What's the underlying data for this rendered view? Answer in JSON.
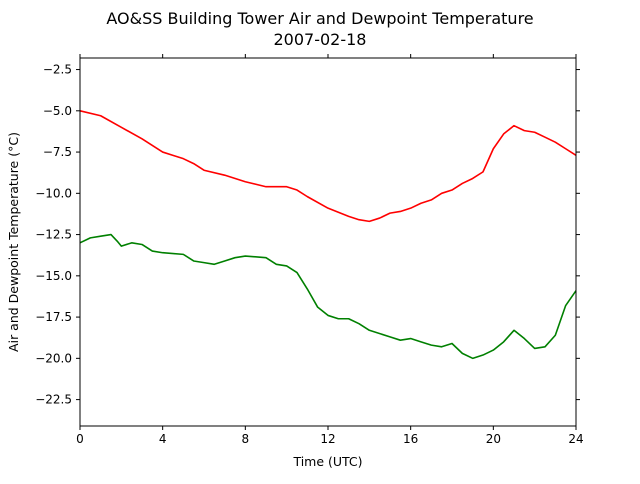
{
  "chart_data": {
    "type": "line",
    "title_line1": "AO&SS Building Tower Air and Dewpoint Temperature",
    "title_line2": "2007-02-18",
    "xlabel": "Time (UTC)",
    "ylabel": "Air and Dewpoint Temperature (°C)",
    "xlim": [
      0,
      24
    ],
    "ylim": [
      -24.1,
      -1.8
    ],
    "x_ticks": [
      0,
      4,
      8,
      12,
      16,
      20,
      24
    ],
    "x_tick_labels": [
      "0",
      "4",
      "8",
      "12",
      "16",
      "20",
      "24"
    ],
    "y_ticks": [
      -22.5,
      -20.0,
      -17.5,
      -15.0,
      -12.5,
      -10.0,
      -7.5,
      -5.0,
      -2.5
    ],
    "y_tick_labels": [
      "−22.5",
      "−20.0",
      "−17.5",
      "−15.0",
      "−12.5",
      "−10.0",
      "−7.5",
      "−5.0",
      "−2.5"
    ],
    "grid": false,
    "series": [
      {
        "color": "#ff0000",
        "x": [
          0,
          1,
          2,
          3,
          3.5,
          4,
          4.5,
          5,
          5.5,
          6,
          7,
          8,
          9,
          10,
          10.5,
          11,
          12,
          13,
          13.5,
          14,
          14.5,
          15,
          15.5,
          16,
          16.5,
          17,
          17.5,
          18,
          18.5,
          19,
          19.5,
          20,
          20.5,
          21,
          21.5,
          22,
          22.5,
          23,
          23.5,
          24
        ],
        "y": [
          -5.0,
          -5.3,
          -6.0,
          -6.7,
          -7.1,
          -7.5,
          -7.7,
          -7.9,
          -8.2,
          -8.6,
          -8.9,
          -9.3,
          -9.6,
          -9.6,
          -9.8,
          -10.2,
          -10.9,
          -11.4,
          -11.6,
          -11.7,
          -11.5,
          -11.2,
          -11.1,
          -10.9,
          -10.6,
          -10.4,
          -10.0,
          -9.8,
          -9.4,
          -9.1,
          -8.7,
          -7.3,
          -6.4,
          -5.9,
          -6.2,
          -6.3,
          -6.6,
          -6.9,
          -7.3,
          -7.7
        ]
      },
      {
        "color": "#008000",
        "x": [
          0,
          0.5,
          1,
          1.5,
          1.8,
          2,
          2.5,
          3,
          3.5,
          4,
          5,
          5.5,
          6,
          6.5,
          7,
          7.5,
          8,
          9,
          9.5,
          10,
          10.5,
          11,
          11.5,
          12,
          12.5,
          13,
          13.5,
          14,
          15,
          15.5,
          16,
          16.5,
          17,
          17.5,
          18,
          18.5,
          19,
          19.5,
          20,
          20.5,
          21,
          21.5,
          22,
          22.5,
          23,
          23.5,
          24
        ],
        "y": [
          -13.0,
          -12.7,
          -12.6,
          -12.5,
          -12.9,
          -13.2,
          -13.0,
          -13.1,
          -13.5,
          -13.6,
          -13.7,
          -14.1,
          -14.2,
          -14.3,
          -14.1,
          -13.9,
          -13.8,
          -13.9,
          -14.3,
          -14.4,
          -14.8,
          -15.8,
          -16.9,
          -17.4,
          -17.6,
          -17.6,
          -17.9,
          -18.3,
          -18.7,
          -18.9,
          -18.8,
          -19.0,
          -19.2,
          -19.3,
          -19.1,
          -19.7,
          -20.0,
          -19.8,
          -19.5,
          -19.0,
          -18.3,
          -18.8,
          -19.4,
          -19.3,
          -18.6,
          -16.8,
          -15.9
        ]
      }
    ]
  }
}
